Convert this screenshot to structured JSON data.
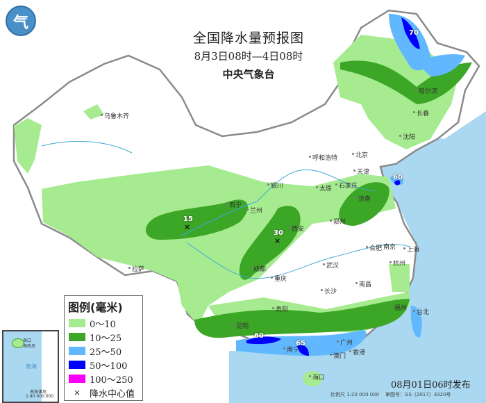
{
  "header": {
    "title": "全国降水量预报图",
    "period": "8月3日08时—4日08时",
    "agency": "中央气象台"
  },
  "legend": {
    "title": "图例(毫米)",
    "items": [
      {
        "label": "0～10",
        "color": "#a6eb8f"
      },
      {
        "label": "10～25",
        "color": "#3ca626"
      },
      {
        "label": "25～50",
        "color": "#61b8ff"
      },
      {
        "label": "50～100",
        "color": "#0000fe"
      },
      {
        "label": "100～250",
        "color": "#fa00fa"
      }
    ],
    "center_label": "降水中心值",
    "center_icon": "cross-icon"
  },
  "cities": [
    "乌鲁木齐",
    "拉萨",
    "西宁",
    "兰州",
    "银川",
    "呼和浩特",
    "北京",
    "天津",
    "太原",
    "石家庄",
    "济南",
    "郑州",
    "西安",
    "成都",
    "重庆",
    "武汉",
    "合肥",
    "南京",
    "上海",
    "杭州",
    "长沙",
    "南昌",
    "贵阳",
    "昆明",
    "南宁",
    "广州",
    "香港",
    "澳门",
    "海口",
    "福州",
    "台北",
    "哈尔滨",
    "长春",
    "沈阳"
  ],
  "rain_centers": [
    "15",
    "30",
    "60",
    "70",
    "60",
    "65"
  ],
  "inset": {
    "labels": [
      "海口",
      "海南岛",
      "南海",
      "南海诸岛",
      "1:40 000 000"
    ]
  },
  "footer": {
    "issued": "08月01日06时发布",
    "scale": "比例尺 1:20 000 000",
    "map_no": "审图号：GS（2017）3320号"
  },
  "colors": {
    "sea": "#a9d8f0",
    "border": "#888888"
  }
}
